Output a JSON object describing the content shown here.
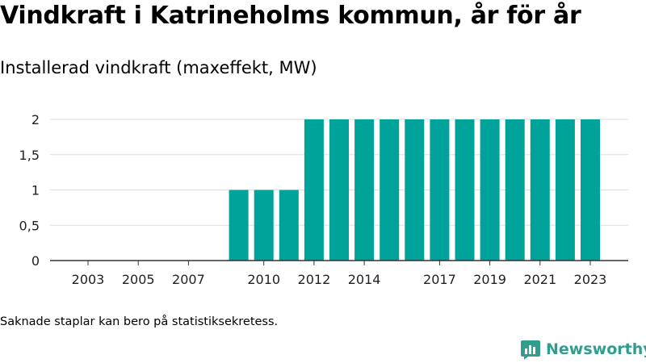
{
  "title": "Vindkraft i Katrineholms kommun, år för år",
  "subtitle": "Installerad vindkraft (maxeffekt, MW)",
  "footnote": "Saknade staplar kan bero på statistiksekretess.",
  "brand": {
    "name": "Newsworthy",
    "icon": "newsworthy-logo-icon",
    "color": "#2f9e8e"
  },
  "colors": {
    "bar": "#00a39a",
    "grid": "#dddddd",
    "axis": "#333333"
  },
  "chart_data": {
    "type": "bar",
    "title": "",
    "xlabel": "",
    "ylabel": "",
    "categories": [
      "2003",
      "2004",
      "2005",
      "2006",
      "2007",
      "2008",
      "2009",
      "2010",
      "2011",
      "2012",
      "2013",
      "2014",
      "2015",
      "2016",
      "2017",
      "2018",
      "2019",
      "2020",
      "2021",
      "2022",
      "2023"
    ],
    "values": [
      0,
      0,
      0,
      0,
      0,
      0,
      1,
      1,
      1,
      2,
      2,
      2,
      2,
      2,
      2,
      2,
      2,
      2,
      2,
      2,
      2
    ],
    "ylim": [
      0,
      2
    ],
    "yticks": [
      0,
      0.5,
      1,
      1.5,
      2
    ],
    "ytick_labels": [
      "0",
      "0,5",
      "1",
      "1,5",
      "2"
    ],
    "xtick_labels": [
      "2003",
      "2005",
      "2007",
      "2010",
      "2012",
      "2014",
      "2017",
      "2019",
      "2021",
      "2023"
    ],
    "grid": true,
    "legend": "none"
  }
}
